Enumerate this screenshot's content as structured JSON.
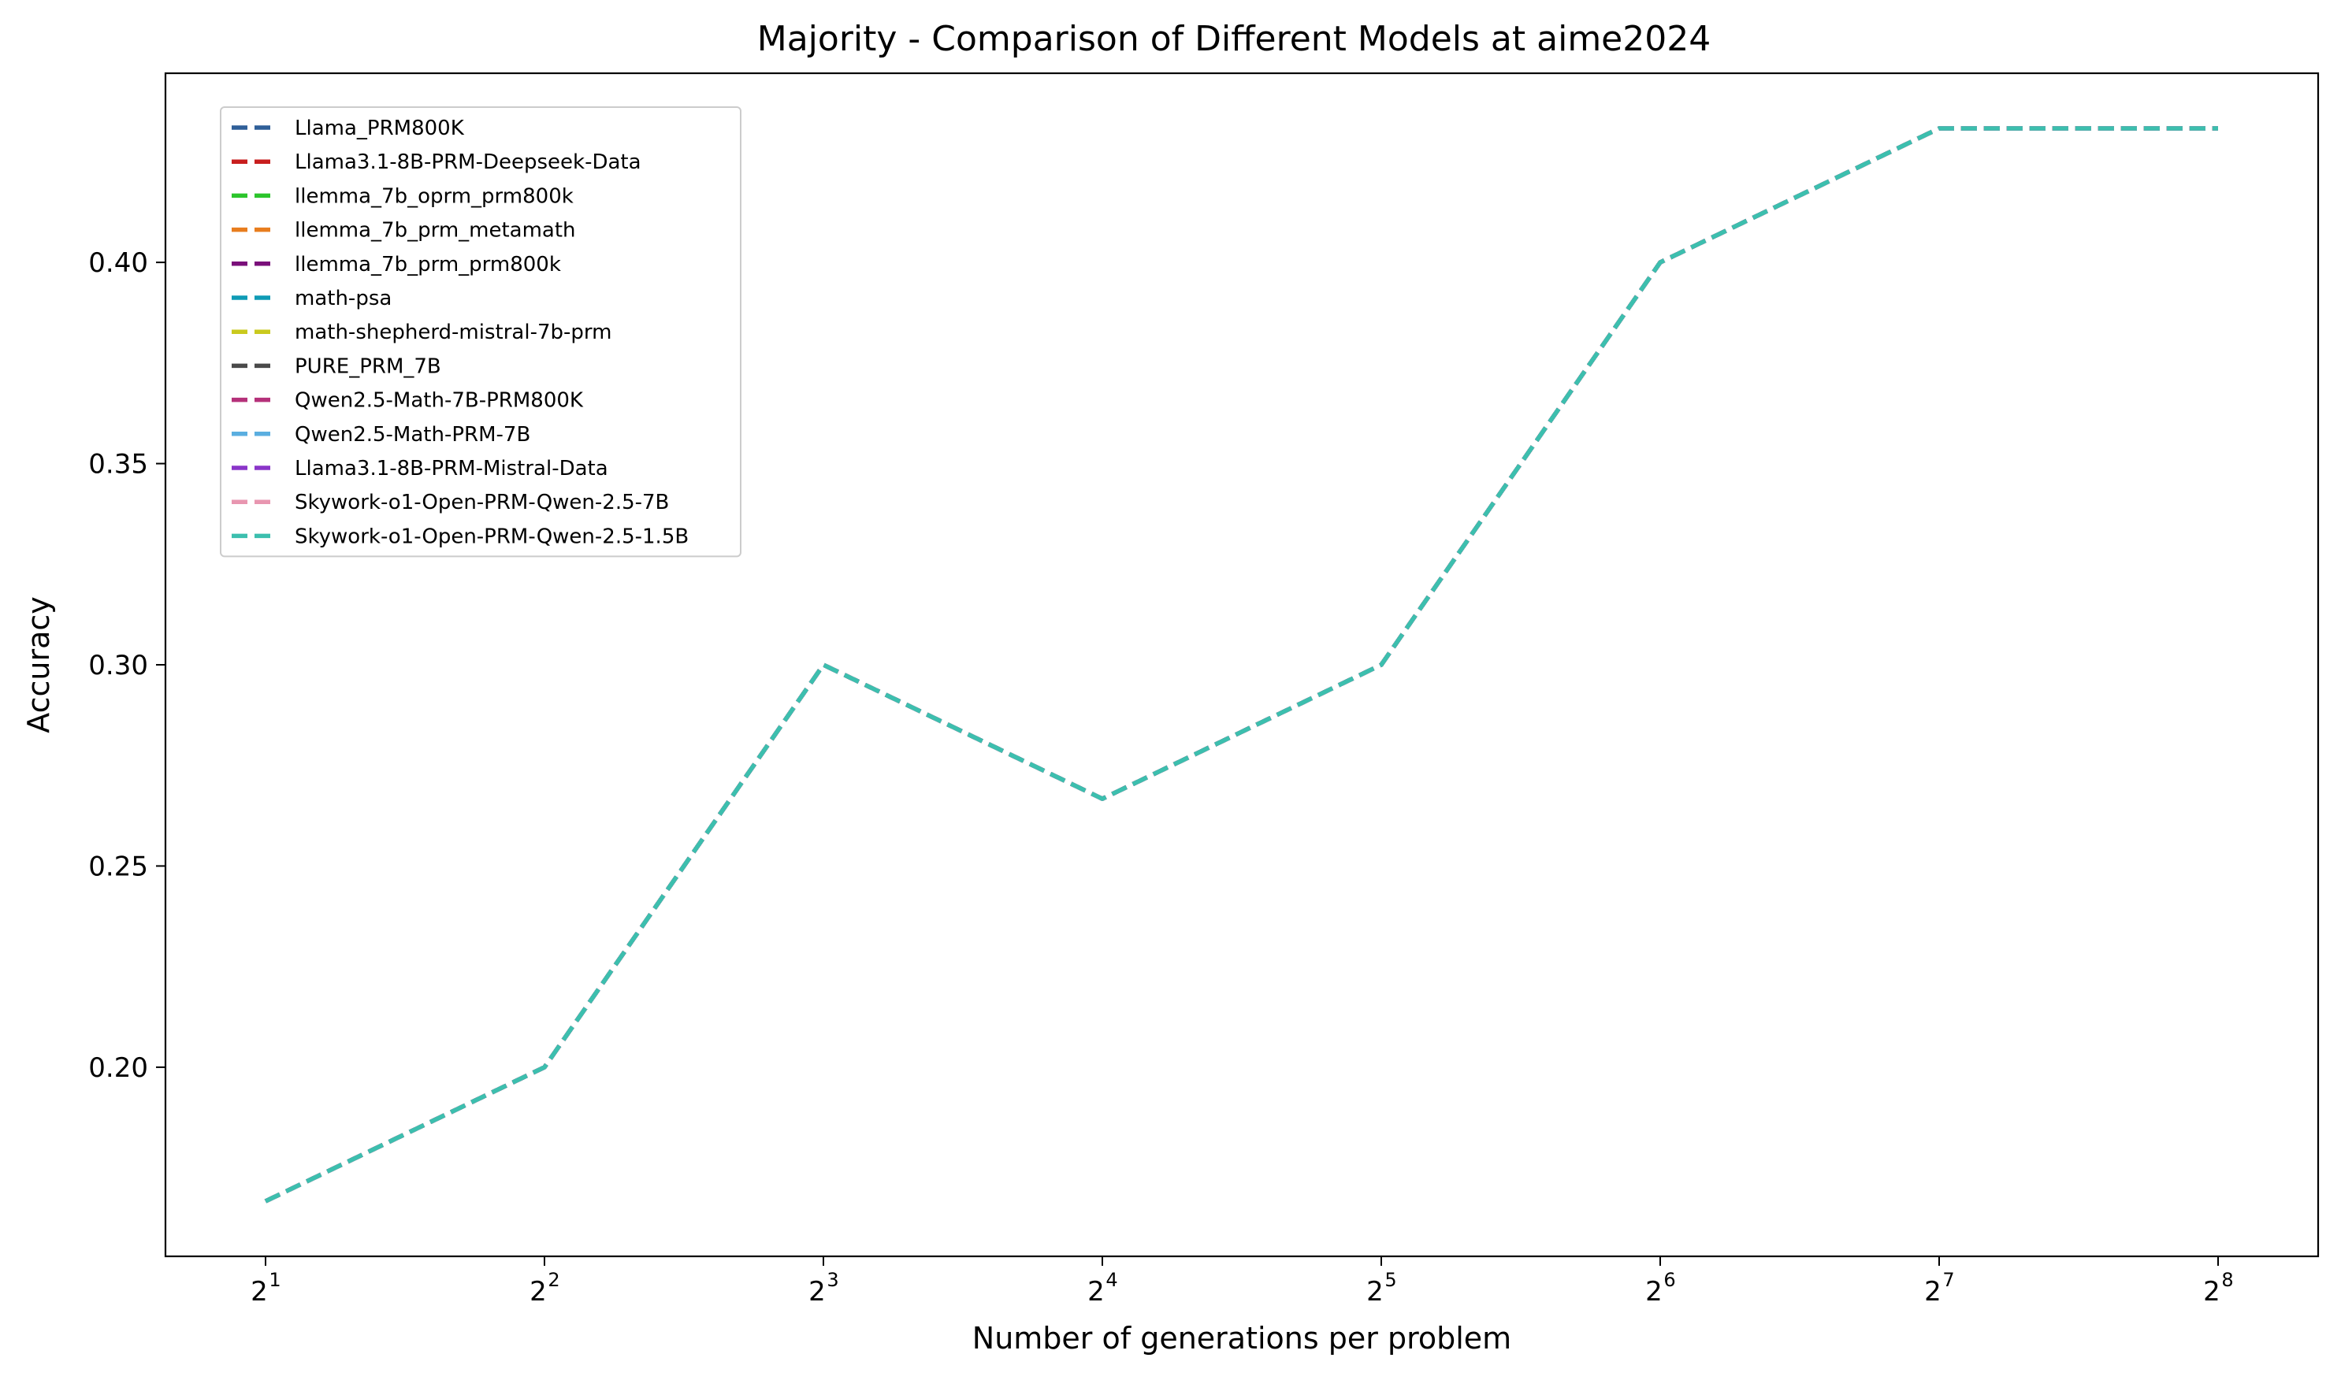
{
  "chart_data": {
    "type": "line",
    "title": "Majority - Comparison of Different Models at aime2024",
    "xlabel": "Number of generations per problem",
    "ylabel": "Accuracy",
    "x": [
      2,
      4,
      8,
      16,
      32,
      64,
      128,
      256
    ],
    "x_tick_base": "2",
    "x_tick_exponents": [
      "1",
      "2",
      "3",
      "4",
      "5",
      "6",
      "7",
      "8"
    ],
    "x_scale": "log2",
    "ylim": [
      0.153,
      0.447
    ],
    "y_ticks": [
      0.2,
      0.25,
      0.3,
      0.35,
      0.4
    ],
    "y_tick_labels": [
      "0.20",
      "0.25",
      "0.30",
      "0.35",
      "0.40"
    ],
    "grid": false,
    "legend_position": "top-left",
    "line_style": "dashed",
    "series": [
      {
        "name": "Llama_PRM800K",
        "color": "#2f5f98",
        "values": [
          0.1667,
          0.2,
          0.3,
          0.2667,
          0.3,
          0.4,
          0.4333,
          0.4333
        ]
      },
      {
        "name": "Llama3.1-8B-PRM-Deepseek-Data",
        "color": "#c81e1e",
        "values": [
          0.1667,
          0.2,
          0.3,
          0.2667,
          0.3,
          0.4,
          0.4333,
          0.4333
        ]
      },
      {
        "name": "llemma_7b_oprm_prm800k",
        "color": "#2cc52c",
        "values": [
          0.1667,
          0.2,
          0.3,
          0.2667,
          0.3,
          0.4,
          0.4333,
          0.4333
        ]
      },
      {
        "name": "llemma_7b_prm_metamath",
        "color": "#e87d1e",
        "values": [
          0.1667,
          0.2,
          0.3,
          0.2667,
          0.3,
          0.4,
          0.4333,
          0.4333
        ]
      },
      {
        "name": "llemma_7b_prm_prm800k",
        "color": "#7a0f7a",
        "values": [
          0.1667,
          0.2,
          0.3,
          0.2667,
          0.3,
          0.4,
          0.4333,
          0.4333
        ]
      },
      {
        "name": "math-psa",
        "color": "#0f9bb5",
        "values": [
          0.1667,
          0.2,
          0.3,
          0.2667,
          0.3,
          0.4,
          0.4333,
          0.4333
        ]
      },
      {
        "name": "math-shepherd-mistral-7b-prm",
        "color": "#c9c91e",
        "values": [
          0.1667,
          0.2,
          0.3,
          0.2667,
          0.3,
          0.4,
          0.4333,
          0.4333
        ]
      },
      {
        "name": "PURE_PRM_7B",
        "color": "#4a4a4a",
        "values": [
          0.1667,
          0.2,
          0.3,
          0.2667,
          0.3,
          0.4,
          0.4333,
          0.4333
        ]
      },
      {
        "name": "Qwen2.5-Math-7B-PRM800K",
        "color": "#b5317a",
        "values": [
          0.1667,
          0.2,
          0.3,
          0.2667,
          0.3,
          0.4,
          0.4333,
          0.4333
        ]
      },
      {
        "name": "Qwen2.5-Math-PRM-7B",
        "color": "#5aaee0",
        "values": [
          0.1667,
          0.2,
          0.3,
          0.2667,
          0.3,
          0.4,
          0.4333,
          0.4333
        ]
      },
      {
        "name": "Llama3.1-8B-PRM-Mistral-Data",
        "color": "#8a35c9",
        "values": [
          0.1667,
          0.2,
          0.3,
          0.2667,
          0.3,
          0.4,
          0.4333,
          0.4333
        ]
      },
      {
        "name": "Skywork-o1-Open-PRM-Qwen-2.5-7B",
        "color": "#e896b0",
        "values": [
          0.1667,
          0.2,
          0.3,
          0.2667,
          0.3,
          0.4,
          0.4333,
          0.4333
        ]
      },
      {
        "name": "Skywork-o1-Open-PRM-Qwen-2.5-1.5B",
        "color": "#3cbfae",
        "values": [
          0.1667,
          0.2,
          0.3,
          0.2667,
          0.3,
          0.4,
          0.4333,
          0.4333
        ]
      }
    ]
  }
}
